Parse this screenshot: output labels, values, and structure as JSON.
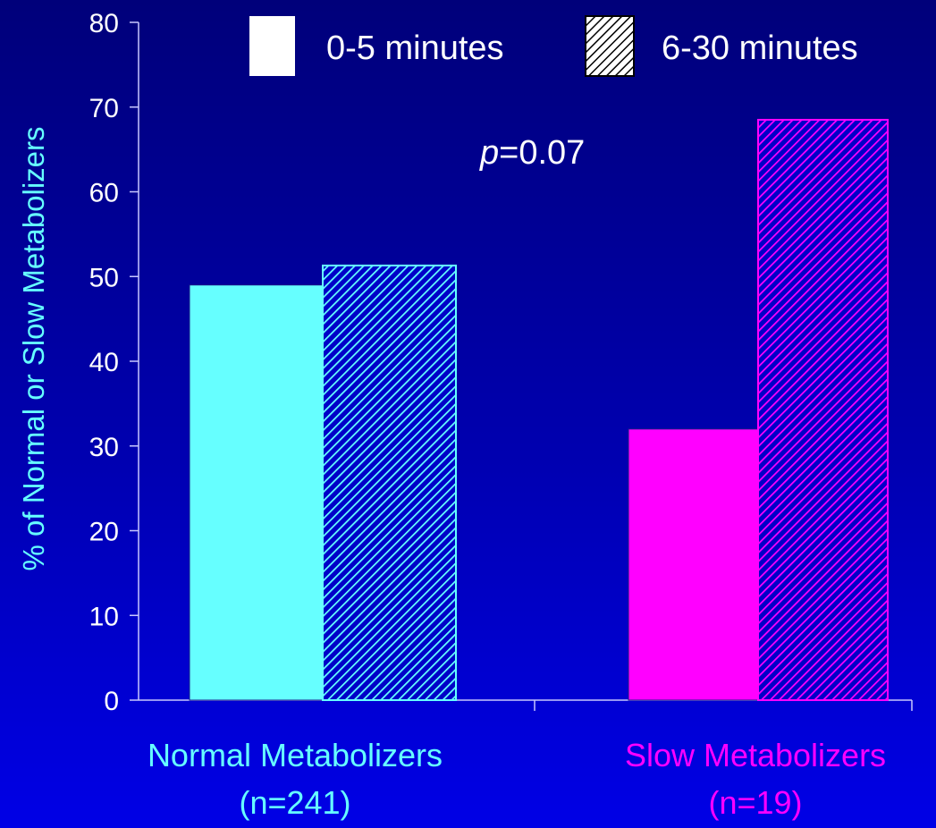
{
  "chart_data": {
    "type": "bar",
    "ylabel": "% of Normal or Slow Metabolizers",
    "ylim": [
      0,
      80
    ],
    "yticks": [
      0,
      10,
      20,
      30,
      40,
      50,
      60,
      70,
      80
    ],
    "categories": [
      {
        "line1": "Normal Metabolizers",
        "line2": "(n=241)",
        "color": "#66ffff"
      },
      {
        "line1": "Slow Metabolizers",
        "line2": "(n=19)",
        "color": "#ff00ff"
      }
    ],
    "series": [
      {
        "name": "0-5 minutes",
        "pattern": "solid",
        "values": [
          49,
          32
        ]
      },
      {
        "name": "6-30 minutes",
        "pattern": "hatched",
        "values": [
          51.3,
          68.5
        ]
      }
    ],
    "annotation": {
      "italic": "p",
      "text": "=0.07"
    },
    "legend_position": "top",
    "grid": false
  }
}
